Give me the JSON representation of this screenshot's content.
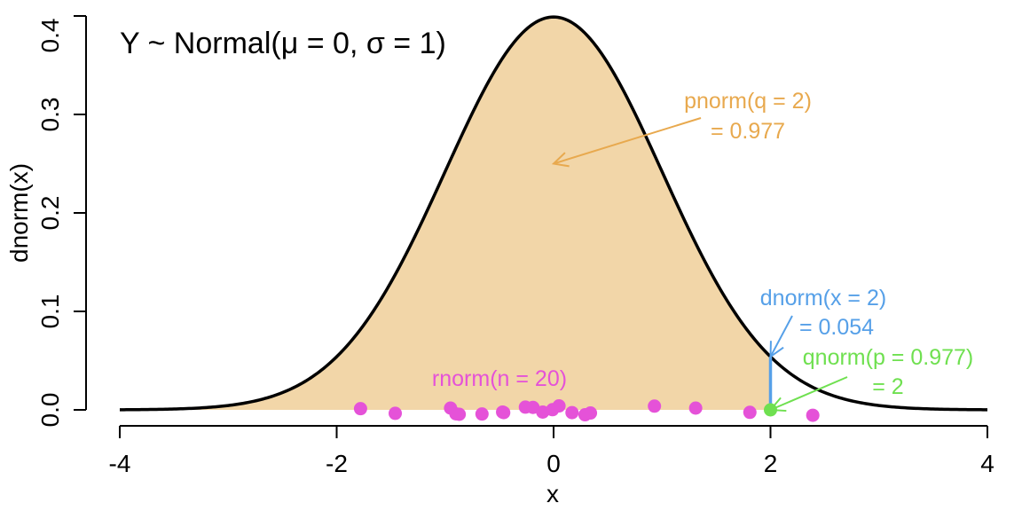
{
  "chart_data": {
    "type": "line",
    "title": "Y ~ Normal(μ = 0, σ = 1)",
    "xlabel": "x",
    "ylabel": "dnorm(x)",
    "xlim": [
      -4,
      4
    ],
    "ylim": [
      0,
      0.4
    ],
    "x_ticks": [
      -4,
      -2,
      0,
      2,
      4
    ],
    "x_tick_labels": [
      "-4",
      "-2",
      "0",
      "2",
      "4"
    ],
    "y_ticks": [
      0.0,
      0.1,
      0.2,
      0.3,
      0.4
    ],
    "y_tick_labels": [
      "0.0",
      "0.1",
      "0.2",
      "0.3",
      "0.4"
    ],
    "grid": false,
    "series": [
      {
        "distribution": "normal",
        "mean": 0,
        "sd": 1,
        "color": "#000000"
      }
    ],
    "shaded_region": {
      "from": -4,
      "to": 2,
      "color": "#f2d6a8"
    },
    "dnorm_segment": {
      "x": 2,
      "y": 0.054,
      "color": "#56a0e8"
    },
    "qnorm_point": {
      "x": 2,
      "y": 0,
      "color": "#6fe050"
    },
    "rnorm_points": {
      "color": "#e552d8",
      "x": [
        -1.78,
        -1.46,
        -0.95,
        -0.9,
        -0.87,
        -0.66,
        -0.47,
        -0.46,
        -0.26,
        -0.19,
        -0.1,
        -0.01,
        0.05,
        0.17,
        0.29,
        0.34,
        0.93,
        1.31,
        1.81,
        2.39
      ],
      "y": [
        0.0012,
        -0.0035,
        0.0018,
        -0.004,
        -0.0045,
        -0.0042,
        -0.0022,
        -0.0028,
        0.0028,
        0.0025,
        -0.0022,
        0.0002,
        0.004,
        -0.0028,
        -0.005,
        -0.0032,
        0.0038,
        0.0018,
        -0.0025,
        -0.0055
      ]
    },
    "annotations": [
      {
        "id": "pnorm",
        "lines": [
          "pnorm(q = 2)",
          "= 0.977"
        ],
        "color": "#e8a94e",
        "arrow_to": [
          0,
          0.25
        ]
      },
      {
        "id": "dnorm",
        "lines": [
          "dnorm(x = 2)",
          "= 0.054"
        ],
        "color": "#56a0e8",
        "arrow_to": [
          2,
          0.054
        ]
      },
      {
        "id": "qnorm",
        "lines": [
          "qnorm(p = 0.977)",
          "= 2"
        ],
        "color": "#6fe050",
        "arrow_to": [
          2,
          0
        ]
      },
      {
        "id": "rnorm",
        "lines": [
          "rnorm(n = 20)"
        ],
        "color": "#e552d8"
      }
    ]
  }
}
